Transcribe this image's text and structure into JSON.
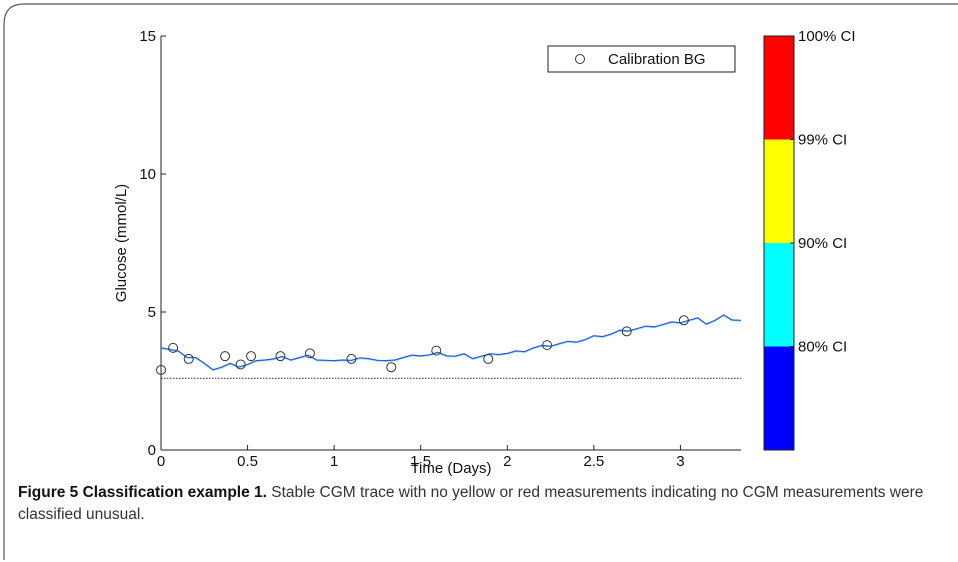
{
  "caption": {
    "label": "Figure 5 Classification example 1.",
    "text": " Stable CGM trace with no yellow or red measurements indicating no CGM measurements were classified unusual."
  },
  "colors": {
    "trace": "#3b4fd8",
    "trace_alt": "#33e6e6",
    "markers": "#333333",
    "threshold": "#222222",
    "cb_blue": "#0000ff",
    "cb_cyan": "#00ffff",
    "cb_yellow": "#ffff00",
    "cb_red": "#ff0000"
  },
  "chart_data": {
    "type": "line",
    "title": "",
    "xlabel": "Time (Days)",
    "ylabel": "Glucose (mmol/L)",
    "xlim": [
      0,
      3.35
    ],
    "ylim": [
      0,
      15
    ],
    "xticks": [
      0,
      0.5,
      1,
      1.5,
      2,
      2.5,
      3
    ],
    "xtick_labels": [
      "0",
      "0.5",
      "1",
      "1.5",
      "2",
      "2.5",
      "3"
    ],
    "yticks": [
      0,
      5,
      10,
      15
    ],
    "ytick_labels": [
      "0",
      "5",
      "10",
      "15"
    ],
    "grid": false,
    "legend": {
      "position": "top-right",
      "entries": [
        "Calibration BG"
      ]
    },
    "cgm_trace": {
      "x": [
        0,
        0.05,
        0.1,
        0.15,
        0.2,
        0.25,
        0.3,
        0.35,
        0.4,
        0.45,
        0.5,
        0.55,
        0.6,
        0.65,
        0.7,
        0.75,
        0.8,
        0.85,
        0.9,
        0.95,
        1.0,
        1.05,
        1.1,
        1.15,
        1.2,
        1.25,
        1.3,
        1.35,
        1.4,
        1.45,
        1.5,
        1.55,
        1.6,
        1.65,
        1.7,
        1.75,
        1.8,
        1.85,
        1.9,
        1.95,
        2.0,
        2.05,
        2.1,
        2.15,
        2.2,
        2.25,
        2.3,
        2.35,
        2.4,
        2.45,
        2.5,
        2.55,
        2.6,
        2.65,
        2.7,
        2.75,
        2.8,
        2.85,
        2.9,
        2.95,
        3.0,
        3.05,
        3.1,
        3.15,
        3.2,
        3.25,
        3.3,
        3.35
      ],
      "y": [
        3.7,
        3.65,
        3.55,
        3.4,
        3.35,
        3.1,
        2.95,
        3.0,
        3.1,
        3.05,
        3.1,
        3.2,
        3.3,
        3.3,
        3.35,
        3.3,
        3.35,
        3.4,
        3.3,
        3.25,
        3.2,
        3.3,
        3.25,
        3.3,
        3.35,
        3.25,
        3.2,
        3.3,
        3.35,
        3.4,
        3.45,
        3.45,
        3.5,
        3.45,
        3.4,
        3.45,
        3.35,
        3.4,
        3.45,
        3.5,
        3.5,
        3.55,
        3.6,
        3.7,
        3.75,
        3.8,
        3.85,
        3.9,
        3.95,
        4.0,
        4.1,
        4.15,
        4.2,
        4.3,
        4.35,
        4.4,
        4.45,
        4.5,
        4.55,
        4.6,
        4.65,
        4.7,
        4.75,
        4.6,
        4.7,
        4.85,
        4.75,
        4.7
      ]
    },
    "calibration_bg": {
      "x": [
        0.0,
        0.07,
        0.16,
        0.37,
        0.46,
        0.52,
        0.69,
        0.86,
        1.1,
        1.33,
        1.59,
        1.89,
        2.23,
        2.69,
        3.02
      ],
      "y": [
        2.9,
        3.7,
        3.3,
        3.4,
        3.1,
        3.4,
        3.4,
        3.5,
        3.3,
        3.0,
        3.6,
        3.3,
        3.8,
        4.3,
        4.7
      ]
    },
    "threshold_line": {
      "y": 2.6,
      "style": "dotted"
    },
    "colorbar": {
      "labels": [
        "100% CI",
        "99% CI",
        "90% CI",
        "80% CI"
      ],
      "bands": [
        {
          "name": "80% CI",
          "color": "#0000ff"
        },
        {
          "name": "90% CI",
          "color": "#00ffff"
        },
        {
          "name": "99% CI",
          "color": "#ffff00"
        },
        {
          "name": "100% CI",
          "color": "#ff0000"
        }
      ]
    }
  }
}
